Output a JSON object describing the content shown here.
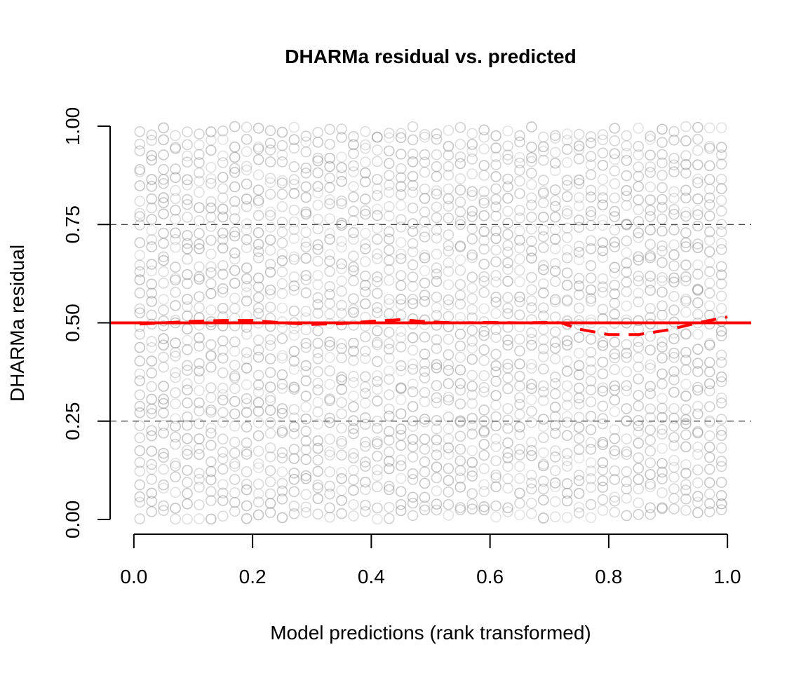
{
  "chart_data": {
    "type": "scatter",
    "title": "DHARMa residual vs. predicted",
    "xlabel": "Model predictions (rank transformed)",
    "ylabel": "DHARMa residual",
    "xlim": [
      -0.04,
      1.04
    ],
    "ylim": [
      0.0,
      1.0
    ],
    "x_ticks": [
      0.0,
      0.2,
      0.4,
      0.6,
      0.8,
      1.0
    ],
    "x_tick_labels": [
      "0.0",
      "0.2",
      "0.4",
      "0.6",
      "0.8",
      "1.0"
    ],
    "y_ticks": [
      0.0,
      0.25,
      0.5,
      0.75,
      1.0
    ],
    "y_tick_labels": [
      "0.00",
      "0.25",
      "0.50",
      "0.75",
      "1.00"
    ],
    "reference_lines": {
      "dashed_black": [
        0.25,
        0.75
      ],
      "solid_red": 0.5
    },
    "colors": {
      "points": "#7f7f7f",
      "reference": "#000000",
      "uniform_line": "#ff0000",
      "smooth_line": "#ff0000"
    },
    "point_style": "open-circle, semi-transparent grey",
    "point_x_positions": [
      0.01,
      0.03,
      0.05,
      0.07,
      0.09,
      0.11,
      0.13,
      0.15,
      0.17,
      0.19,
      0.21,
      0.23,
      0.25,
      0.27,
      0.29,
      0.31,
      0.33,
      0.35,
      0.37,
      0.39,
      0.41,
      0.43,
      0.45,
      0.47,
      0.49,
      0.51,
      0.53,
      0.55,
      0.57,
      0.59,
      0.61,
      0.63,
      0.65,
      0.67,
      0.69,
      0.71,
      0.73,
      0.75,
      0.77,
      0.79,
      0.81,
      0.83,
      0.85,
      0.87,
      0.89,
      0.91,
      0.93,
      0.95,
      0.97,
      0.99
    ],
    "points_per_column": 36,
    "point_y_distribution": "uniform on [0, 1]",
    "smooth_curve": {
      "style": "dashed",
      "x": [
        0.01,
        0.05,
        0.1,
        0.15,
        0.2,
        0.25,
        0.3,
        0.35,
        0.4,
        0.45,
        0.5,
        0.55,
        0.6,
        0.65,
        0.7,
        0.72,
        0.75,
        0.8,
        0.85,
        0.9,
        0.95,
        1.0
      ],
      "y": [
        0.497,
        0.5,
        0.504,
        0.506,
        0.506,
        0.5,
        0.496,
        0.498,
        0.504,
        0.508,
        0.502,
        0.5,
        0.501,
        0.5,
        0.501,
        0.5,
        0.484,
        0.47,
        0.47,
        0.482,
        0.5,
        0.515
      ]
    }
  }
}
